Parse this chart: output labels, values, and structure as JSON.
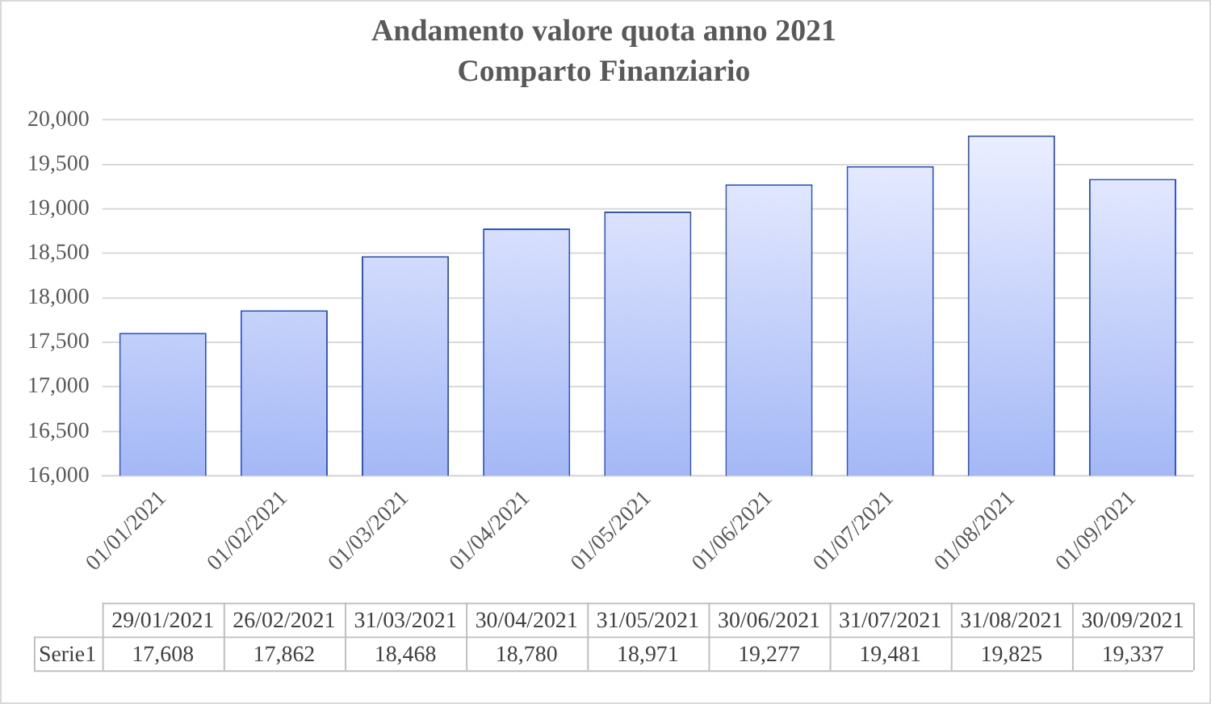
{
  "chart_data": {
    "type": "bar",
    "title": "Andamento valore quota anno 2021",
    "subtitle": "Comparto Finanziario",
    "categories": [
      "01/01/2021",
      "01/02/2021",
      "01/03/2021",
      "01/04/2021",
      "01/05/2021",
      "01/06/2021",
      "01/07/2021",
      "01/08/2021",
      "01/09/2021"
    ],
    "series": [
      {
        "name": "Serie1",
        "color": "#a4b8f6",
        "values": [
          17608,
          17862,
          18468,
          18780,
          18971,
          19277,
          19481,
          19825,
          19337
        ],
        "value_labels": [
          "17,608",
          "17,862",
          "18,468",
          "18,780",
          "18,971",
          "19,277",
          "19,481",
          "19,825",
          "19,337"
        ]
      }
    ],
    "annotations": [
      "29/01/2021",
      "26/02/2021",
      "31/03/2021",
      "30/04/2021",
      "31/05/2021",
      "30/06/2021",
      "31/07/2021",
      "31/08/2021",
      "30/09/2021"
    ],
    "ylim": [
      16000,
      20000
    ],
    "yticks": [
      {
        "value": 16000,
        "label": "16,000"
      },
      {
        "value": 16500,
        "label": "16,500"
      },
      {
        "value": 17000,
        "label": "17,000"
      },
      {
        "value": 17500,
        "label": "17,500"
      },
      {
        "value": 18000,
        "label": "18,000"
      },
      {
        "value": 18500,
        "label": "18,500"
      },
      {
        "value": 19000,
        "label": "19,000"
      },
      {
        "value": 19500,
        "label": "19,500"
      },
      {
        "value": 20000,
        "label": "20,000"
      }
    ],
    "grid": "y",
    "legend": "bottom"
  }
}
